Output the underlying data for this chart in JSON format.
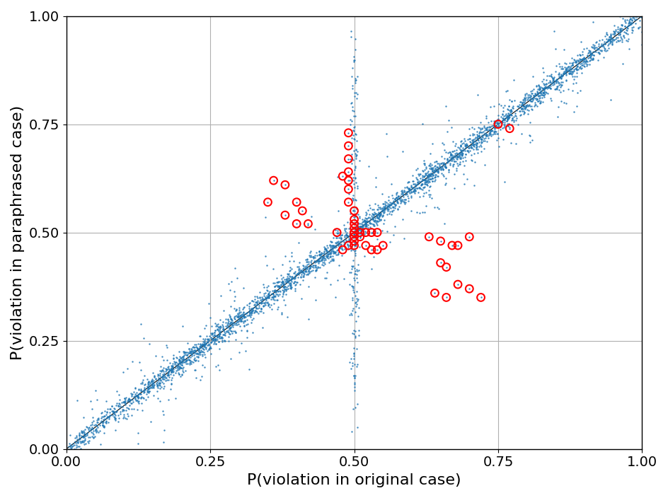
{
  "title": "",
  "xlabel": "P(violation in original case)",
  "ylabel": "P(violation in paraphrased case)",
  "xlim": [
    0.0,
    1.0
  ],
  "ylim": [
    0.0,
    1.0
  ],
  "xticks": [
    0.0,
    0.25,
    0.5,
    0.75,
    1.0
  ],
  "yticks": [
    0.0,
    0.25,
    0.5,
    0.75,
    1.0
  ],
  "blue_color": "#1f77b4",
  "red_color": "#ff0000",
  "diagonal_color": "#000000",
  "figsize": [
    9.44,
    7.04
  ],
  "dpi": 100,
  "blue_dot_size": 3,
  "red_circle_size": 60,
  "red_linewidth": 1.5,
  "grid_color": "#b0b0b0",
  "grid_linewidth": 0.8,
  "label_fontsize": 16,
  "tick_fontsize": 14
}
